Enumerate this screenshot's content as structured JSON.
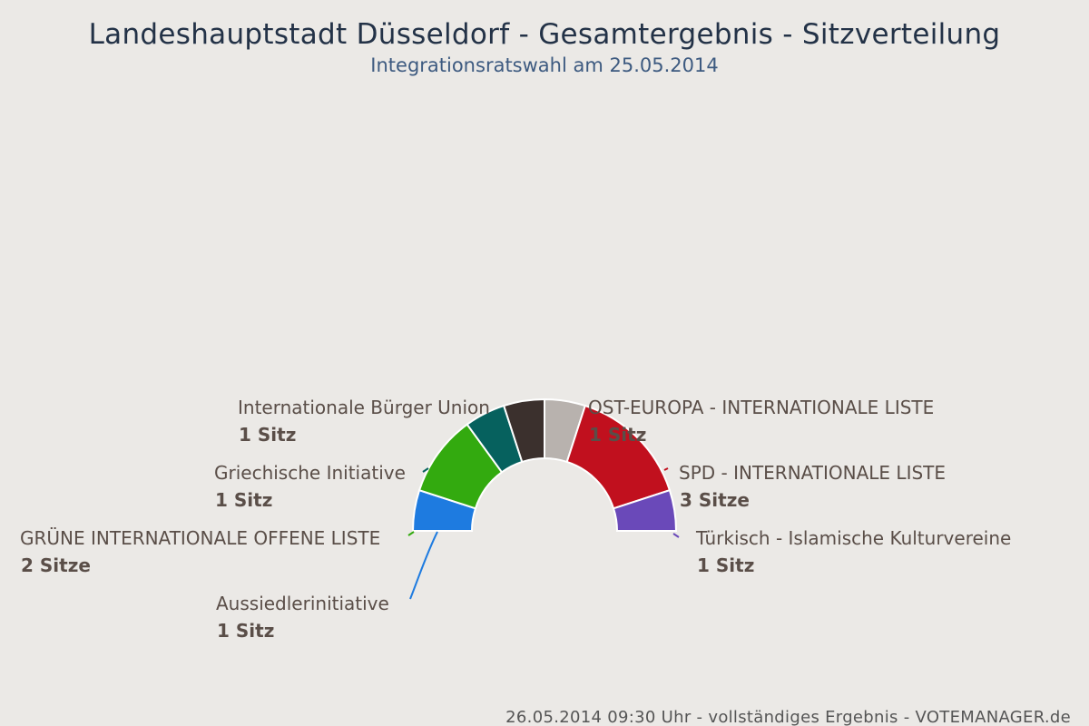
{
  "title": "Landeshauptstadt Düsseldorf - Gesamtergebnis - Sitzverteilung",
  "subtitle": "Integrationsratswahl am 25.05.2014",
  "footer": "26.05.2014 09:30 Uhr - vollständiges Ergebnis - VOTEMANAGER.de",
  "chart_data": {
    "type": "pie",
    "shape": "semicircle",
    "unit_singular": "Sitz",
    "unit_plural": "Sitze",
    "series": [
      {
        "name": "Aussiedlerinitiative",
        "value": 1,
        "value_label": "1 Sitz",
        "color": "#1e7be0"
      },
      {
        "name": "GRÜNE INTERNATIONALE OFFENE LISTE",
        "value": 2,
        "value_label": "2 Sitze",
        "color": "#33aa0f"
      },
      {
        "name": "Griechische Initiative",
        "value": 1,
        "value_label": "1 Sitz",
        "color": "#06615e"
      },
      {
        "name": "Internationale Bürger Union",
        "value": 1,
        "value_label": "1 Sitz",
        "color": "#3b302d"
      },
      {
        "name": "OST-EUROPA - INTERNATIONALE LISTE",
        "value": 1,
        "value_label": "1 Sitz",
        "color": "#b8b2ae"
      },
      {
        "name": "SPD - INTERNATIONALE LISTE",
        "value": 3,
        "value_label": "3 Sitze",
        "color": "#c1101e"
      },
      {
        "name": "Türkisch - Islamische Kulturvereine",
        "value": 1,
        "value_label": "1 Sitz",
        "color": "#6a49b9"
      }
    ]
  }
}
